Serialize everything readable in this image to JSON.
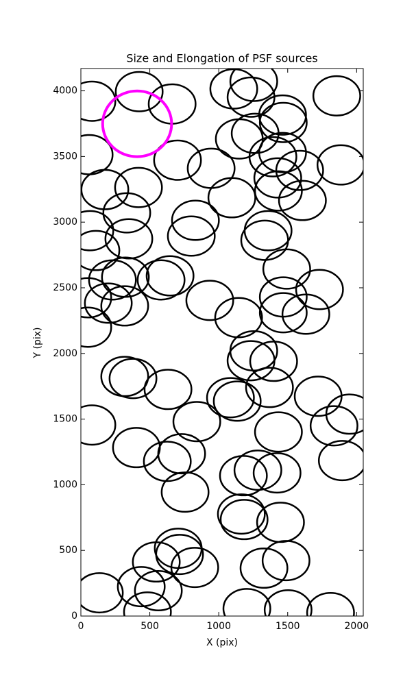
{
  "chart_data": {
    "type": "ellipse-scatter",
    "title": "Size and Elongation of PSF sources",
    "xlabel": "X (pix)",
    "ylabel": "Y (pix)",
    "xlim": [
      0,
      2048
    ],
    "ylim": [
      0,
      4170
    ],
    "xticks": [
      0,
      500,
      1000,
      1500,
      2000
    ],
    "yticks": [
      0,
      500,
      1000,
      1500,
      2000,
      2500,
      3000,
      3500,
      4000
    ],
    "color": "#000000",
    "marker_width": 340,
    "marker_height": 300,
    "x": [
      80,
      423,
      662,
      1109,
      1254,
      1234,
      1856,
      60,
      701,
      945,
      1149,
      1264,
      1463,
      1468,
      1393,
      1463,
      1587,
      1886,
      174,
      418,
      333,
      1428,
      1433,
      1095,
      1607,
      831,
      801,
      65,
      109,
      348,
      1358,
      1333,
      1493,
      647,
      582,
      229,
      323,
      50,
      199,
      318,
      935,
      1731,
      1468,
      1468,
      1632,
      1144,
      50,
      1254,
      1234,
      1398,
      318,
      378,
      632,
      1085,
      1134,
      1368,
      1721,
      80,
      841,
      1433,
      1836,
      1950,
      403,
      627,
      731,
      1179,
      1284,
      1423,
      1896,
      756,
      1164,
      1184,
      1448,
      706,
      716,
      547,
      826,
      1328,
      1488,
      134,
      438,
      562,
      483,
      1204,
      1503,
      1811
    ],
    "y": [
      3921,
      3994,
      3900,
      4015,
      4072,
      3952,
      3962,
      3514,
      3472,
      3410,
      3634,
      3676,
      3816,
      3759,
      3498,
      3530,
      3394,
      3436,
      3248,
      3264,
      3071,
      3337,
      3238,
      3186,
      3165,
      3014,
      2894,
      2935,
      2784,
      2873,
      2935,
      2862,
      2643,
      2591,
      2560,
      2560,
      2581,
      2424,
      2383,
      2362,
      2404,
      2487,
      2430,
      2310,
      2299,
      2273,
      2200,
      2020,
      1945,
      1940,
      1825,
      1809,
      1726,
      1663,
      1637,
      1741,
      1674,
      1455,
      1481,
      1402,
      1449,
      1538,
      1283,
      1178,
      1236,
      1069,
      1111,
      1090,
      1184,
      944,
      777,
      735,
      714,
      516,
      469,
      412,
      370,
      365,
      422,
      177,
      224,
      193,
      31,
      57,
      47,
      26
    ],
    "highlight": {
      "x": 408,
      "y": 3749,
      "radius": 250,
      "color": "#ff00ff"
    }
  }
}
